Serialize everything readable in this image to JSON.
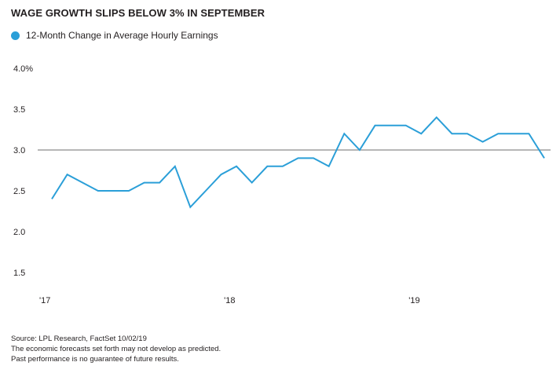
{
  "title": "WAGE GROWTH SLIPS BELOW 3% IN SEPTEMBER",
  "legend": {
    "label": "12-Month Change in Average Hourly Earnings",
    "color": "#2b9fd8"
  },
  "notes": [
    "Source: LPL Research, FactSet  10/02/19",
    "The economic forecasts set forth may not develop as predicted.",
    "Past performance is no guarantee of future results."
  ],
  "chart_data": {
    "type": "line",
    "title": "WAGE GROWTH SLIPS BELOW 3% IN SEPTEMBER",
    "xlabel": "",
    "ylabel": "",
    "ylim": [
      1.5,
      4.0
    ],
    "y_ticks": [
      "4.0%",
      "3.5",
      "3.0",
      "2.5",
      "2.0",
      "1.5"
    ],
    "y_tick_values": [
      4.0,
      3.5,
      3.0,
      2.5,
      2.0,
      1.5
    ],
    "x_ticks": [
      "'17",
      "'18",
      "'19"
    ],
    "reference_line": 3.0,
    "grid": false,
    "legend_position": "top-left",
    "series": [
      {
        "name": "12-Month Change in Average Hourly Earnings",
        "color": "#2b9fd8",
        "x": [
          "2017-01",
          "2017-02",
          "2017-03",
          "2017-04",
          "2017-05",
          "2017-06",
          "2017-07",
          "2017-08",
          "2017-09",
          "2017-10",
          "2017-11",
          "2017-12",
          "2018-01",
          "2018-02",
          "2018-03",
          "2018-04",
          "2018-05",
          "2018-06",
          "2018-07",
          "2018-08",
          "2018-09",
          "2018-10",
          "2018-11",
          "2018-12",
          "2019-01",
          "2019-02",
          "2019-03",
          "2019-04",
          "2019-05",
          "2019-06",
          "2019-07",
          "2019-08",
          "2019-09"
        ],
        "values": [
          2.4,
          2.7,
          2.6,
          2.5,
          2.5,
          2.5,
          2.6,
          2.6,
          2.8,
          2.3,
          2.5,
          2.7,
          2.8,
          2.6,
          2.8,
          2.8,
          2.9,
          2.9,
          2.8,
          3.2,
          3.0,
          3.3,
          3.3,
          3.3,
          3.2,
          3.4,
          3.2,
          3.2,
          3.1,
          3.2,
          3.2,
          3.2,
          2.9
        ]
      }
    ]
  }
}
